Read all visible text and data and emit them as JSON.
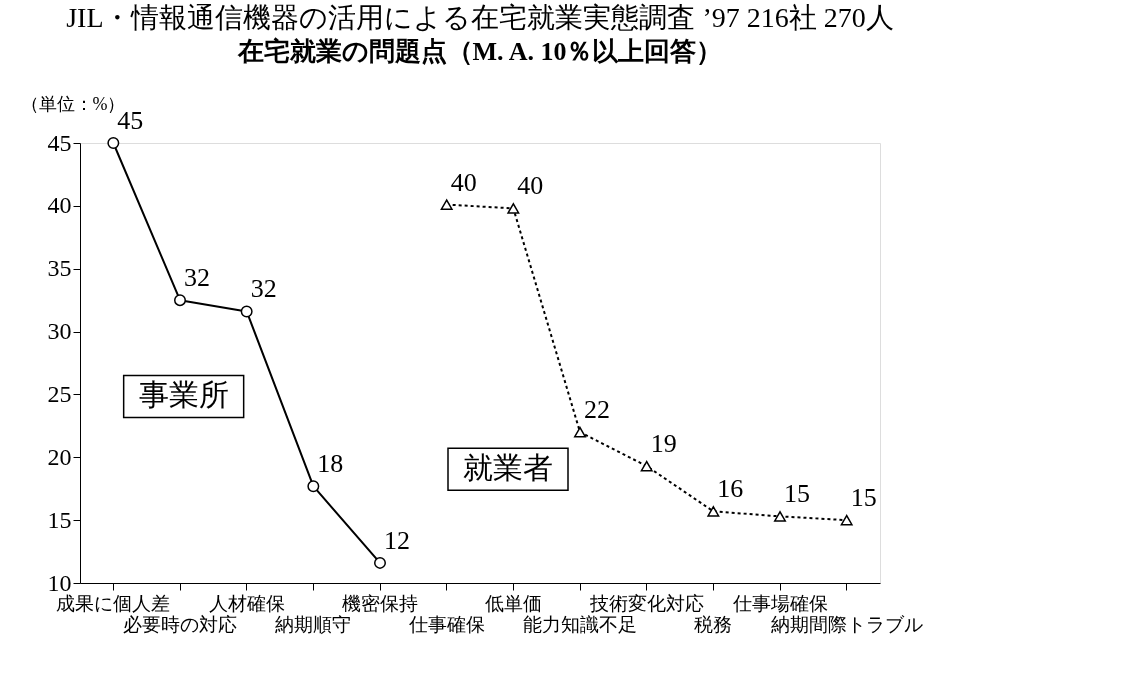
{
  "chart_data": {
    "type": "line",
    "title": "JIL・情報通信機器の活用による在宅就業実態調査 ’97  216社  270人",
    "subtitle": "在宅就業の問題点（M. A. 10％以上回答）",
    "ylabel": "（単位：%）",
    "categories": [
      "成果に個人差",
      "必要時の対応",
      "人材確保",
      "納期順守",
      "機密保持",
      "仕事確保",
      "低単価",
      "能力知識不足",
      "技術変化対応",
      "税務",
      "仕事場確保",
      "納期間際トラブル"
    ],
    "series": [
      {
        "name": "事業所",
        "color": "#000000",
        "marker": "circle",
        "line_style": "solid",
        "values": [
          45,
          32.5,
          31.6,
          17.7,
          11.6,
          null,
          null,
          null,
          null,
          null,
          null,
          null
        ],
        "value_labels": [
          "45",
          "32",
          "32",
          "18",
          "12",
          null,
          null,
          null,
          null,
          null,
          null,
          null
        ]
      },
      {
        "name": "就業者",
        "color": "#000000",
        "marker": "triangle",
        "line_style": "dotted",
        "values": [
          null,
          null,
          null,
          null,
          null,
          40.1,
          39.8,
          22,
          19.3,
          15.7,
          15.3,
          15.0
        ],
        "value_labels": [
          null,
          null,
          null,
          null,
          null,
          "40",
          "40",
          "22",
          "19",
          "16",
          "15",
          "15"
        ]
      }
    ],
    "ylim": [
      10,
      45
    ],
    "yticks": [
      10,
      15,
      20,
      25,
      30,
      35,
      40,
      45
    ],
    "legend": false,
    "grid": false
  }
}
